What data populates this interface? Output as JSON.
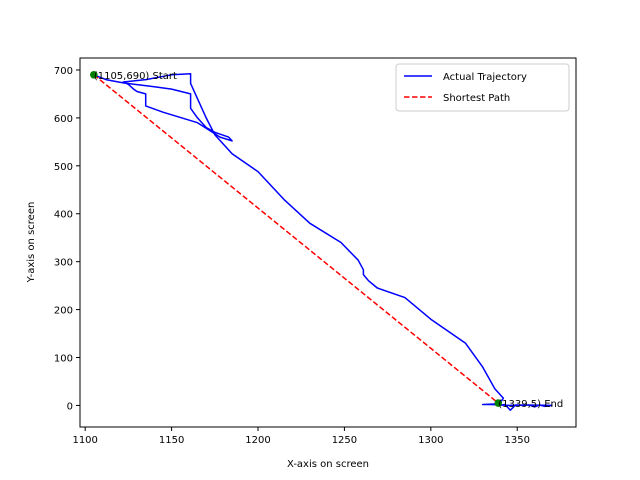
{
  "chart_data": {
    "type": "line",
    "title": "",
    "xlabel": "X-axis on screen",
    "ylabel": "Y-axis on screen",
    "xlim": [
      1097,
      1384
    ],
    "ylim": [
      -45,
      725
    ],
    "x_ticks": [
      1100,
      1150,
      1200,
      1250,
      1300,
      1350
    ],
    "y_ticks": [
      0,
      100,
      200,
      300,
      400,
      500,
      600,
      700
    ],
    "x_tick_labels": [
      "1100",
      "1150",
      "1200",
      "1250",
      "1300",
      "1350"
    ],
    "y_tick_labels": [
      "0",
      "100",
      "200",
      "300",
      "400",
      "500",
      "600",
      "700"
    ],
    "grid": false,
    "legend_position": "top-right",
    "series": [
      {
        "name": "Actual Trajectory",
        "color": "#0000ff",
        "style": "solid",
        "x": [
          1105,
          1112,
          1120,
          1130,
          1143,
          1150,
          1161,
          1161,
          1165,
          1170,
          1175,
          1185,
          1200,
          1215,
          1230,
          1248,
          1258,
          1261,
          1261,
          1264,
          1269,
          1285,
          1300,
          1320,
          1330,
          1337,
          1342,
          1339,
          1343,
          1346,
          1349,
          1353,
          1357,
          1360,
          1363,
          1366,
          1370,
          1355,
          1345,
          1335,
          1330,
          1337
        ],
        "y": [
          690,
          678,
          675,
          680,
          688,
          693,
          692,
          672,
          640,
          600,
          565,
          488,
          430,
          380,
          340,
          303,
          283,
          273,
          260,
          245,
          225,
          180,
          130,
          80,
          35,
          15,
          3,
          0,
          2,
          -10,
          1,
          0,
          1,
          -3,
          1,
          -2,
          0,
          1,
          0,
          2,
          2,
          3
        ],
        "path_x": [
          1105,
          1112,
          1122,
          1133,
          1140,
          1150,
          1161,
          1161,
          1165,
          1170,
          1175,
          1183,
          1185,
          1178,
          1165,
          1145,
          1135,
          1135,
          1130,
          1128,
          1125,
          1122,
          1135,
          1150,
          1161,
          1161,
          1165,
          1170,
          1175,
          1185,
          1200,
          1215,
          1230,
          1248,
          1258,
          1261,
          1261,
          1264,
          1269,
          1285,
          1300,
          1320,
          1330,
          1337,
          1342,
          1339,
          1343,
          1346,
          1349,
          1353,
          1357,
          1360,
          1363,
          1366,
          1370,
          1355,
          1345,
          1335,
          1330,
          1337
        ],
        "path_y": [
          690,
          680,
          673,
          668,
          665,
          660,
          650,
          620,
          600,
          580,
          570,
          560,
          552,
          560,
          590,
          612,
          625,
          650,
          655,
          660,
          670,
          675,
          680,
          690,
          692,
          672,
          640,
          600,
          565,
          525,
          488,
          430,
          380,
          340,
          303,
          283,
          273,
          260,
          245,
          225,
          180,
          130,
          80,
          35,
          15,
          0,
          2,
          -10,
          1,
          0,
          1,
          -3,
          1,
          -2,
          0,
          1,
          0,
          2,
          2,
          3
        ]
      },
      {
        "name": "Shortest Path",
        "color": "#ff0000",
        "style": "dashed",
        "x": [
          1105,
          1339
        ],
        "y": [
          690,
          5
        ]
      }
    ],
    "points": [
      {
        "x": 1105,
        "y": 690,
        "label": "(1105,690) Start"
      },
      {
        "x": 1339,
        "y": 5,
        "label": "(1339,5) End"
      }
    ],
    "point_color": "#008000"
  }
}
